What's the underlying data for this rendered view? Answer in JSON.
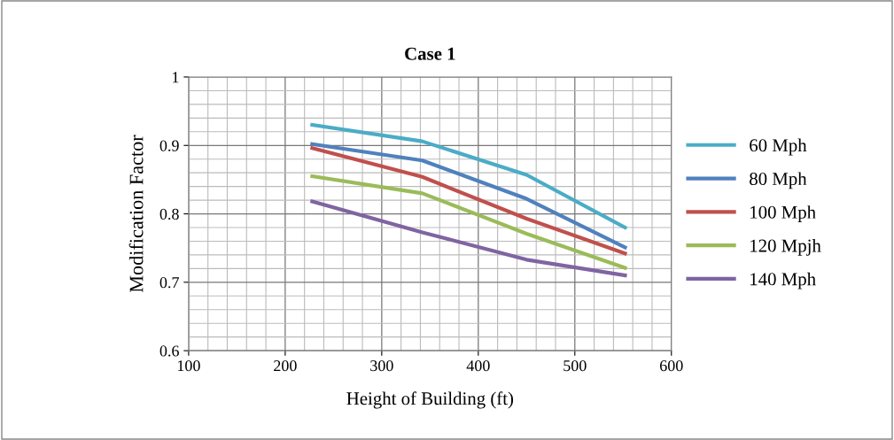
{
  "chart_data": {
    "type": "line",
    "title": "Case 1",
    "xlabel": "Height of Building (ft)",
    "ylabel": "Modification Factor",
    "xlim": [
      100,
      600
    ],
    "xticks": [
      100,
      200,
      300,
      400,
      500,
      600
    ],
    "ylim": [
      0.6,
      1
    ],
    "yticks": [
      0.6,
      0.7,
      0.8,
      0.9,
      1
    ],
    "grid": true,
    "legend": "right",
    "marker": "none",
    "line_style": "solid",
    "series": [
      {
        "name": "60 Mph",
        "color": "#4bacc6",
        "x": [
          228,
          342,
          450,
          552
        ],
        "values": [
          0.93,
          0.906,
          0.857,
          0.78
        ]
      },
      {
        "name": "80 Mph",
        "color": "#4f81bd",
        "x": [
          228,
          342,
          450,
          552
        ],
        "values": [
          0.902,
          0.878,
          0.822,
          0.751
        ]
      },
      {
        "name": "100 Mph",
        "color": "#c0504d",
        "x": [
          228,
          342,
          450,
          552
        ],
        "values": [
          0.896,
          0.854,
          0.793,
          0.742
        ]
      },
      {
        "name": "120 Mpjh",
        "color": "#9bbb59",
        "x": [
          228,
          342,
          450,
          552
        ],
        "values": [
          0.855,
          0.83,
          0.771,
          0.721
        ]
      },
      {
        "name": "140 Mph",
        "color": "#8064a2",
        "x": [
          228,
          342,
          450,
          552
        ],
        "values": [
          0.818,
          0.773,
          0.733,
          0.71
        ]
      }
    ]
  }
}
